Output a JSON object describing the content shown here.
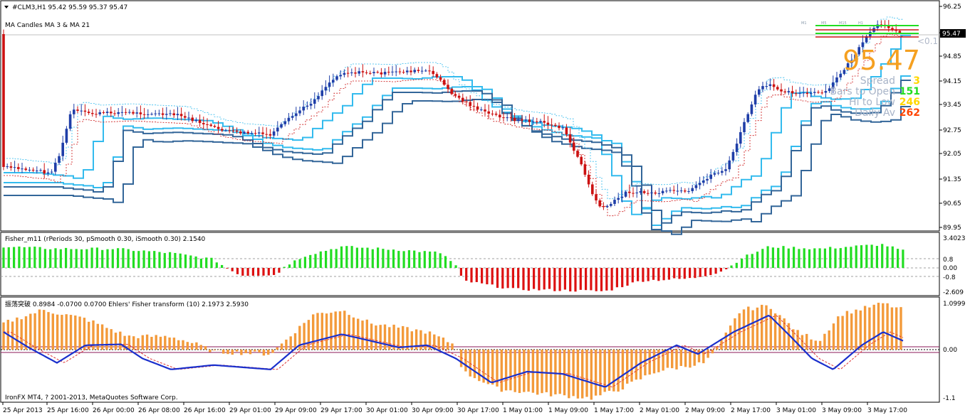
{
  "header": {
    "symbol_line": "#CLM3,H1  95.42 95.59 95.37 95.47",
    "indicator_label": "MA Candles  MA 3  &  MA 21"
  },
  "price_axis": {
    "labels": [
      "96.25",
      "95.47",
      "94.85",
      "94.15",
      "93.45",
      "92.75",
      "92.05",
      "91.35",
      "90.65",
      "89.95"
    ],
    "current_price_tag": "95.47"
  },
  "info_panel": {
    "big_price": "95.47",
    "small_note": "<0.1",
    "rows": [
      {
        "label": "Spread",
        "value": "3",
        "value_color": "#ffd700"
      },
      {
        "label": "Bars to Open",
        "value": "151",
        "value_color": "#22dd22"
      },
      {
        "label": "Hi to Low",
        "value": "246",
        "value_color": "#ffd700"
      },
      {
        "label": "Daily Av",
        "value": "262",
        "value_color": "#ff4400"
      }
    ],
    "mini_labels": [
      "M1",
      "M5",
      "M15",
      "H1"
    ]
  },
  "fisher_panel": {
    "title": "Fisher_m11  (rPeriods 30, pSmooth 0.30, iSmooth 0.30)   2.1540",
    "axis_labels": [
      "3.4023",
      "0.8",
      "0.00",
      "-0.8",
      "-2.609"
    ]
  },
  "ehlers_panel": {
    "title": "振荡突破 0.8984 -0.0700 0.0700  Ehlers' Fisher transform (10) 2.1973 2.5930",
    "axis_labels": [
      "1.0999",
      "0.00",
      "-1.1"
    ],
    "copyright": "IronFX MT4, ? 2001-2013, MetaQuotes Software Corp."
  },
  "time_axis": {
    "labels": [
      "25 Apr 2013",
      "25 Apr 16:00",
      "26 Apr 00:00",
      "26 Apr 08:00",
      "26 Apr 16:00",
      "29 Apr 01:00",
      "29 Apr 09:00",
      "29 Apr 17:00",
      "30 Apr 01:00",
      "30 Apr 09:00",
      "30 Apr 17:00",
      "1 May 01:00",
      "1 May 09:00",
      "1 May 17:00",
      "2 May 01:00",
      "2 May 09:00",
      "2 May 17:00",
      "3 May 01:00",
      "3 May 09:00",
      "3 May 17:00"
    ]
  },
  "colors": {
    "bull_candle": "#1f3ea8",
    "bear_candle": "#cc1111",
    "ma_fast": "#33bbee",
    "ma_slow": "#336699",
    "fisher_pos": "#22dd22",
    "fisher_neg": "#dd1111",
    "ehlers_bar": "#f39a3a",
    "ehlers_line": "#1a2fcc",
    "ehlers_signal": "#dd3333"
  }
}
